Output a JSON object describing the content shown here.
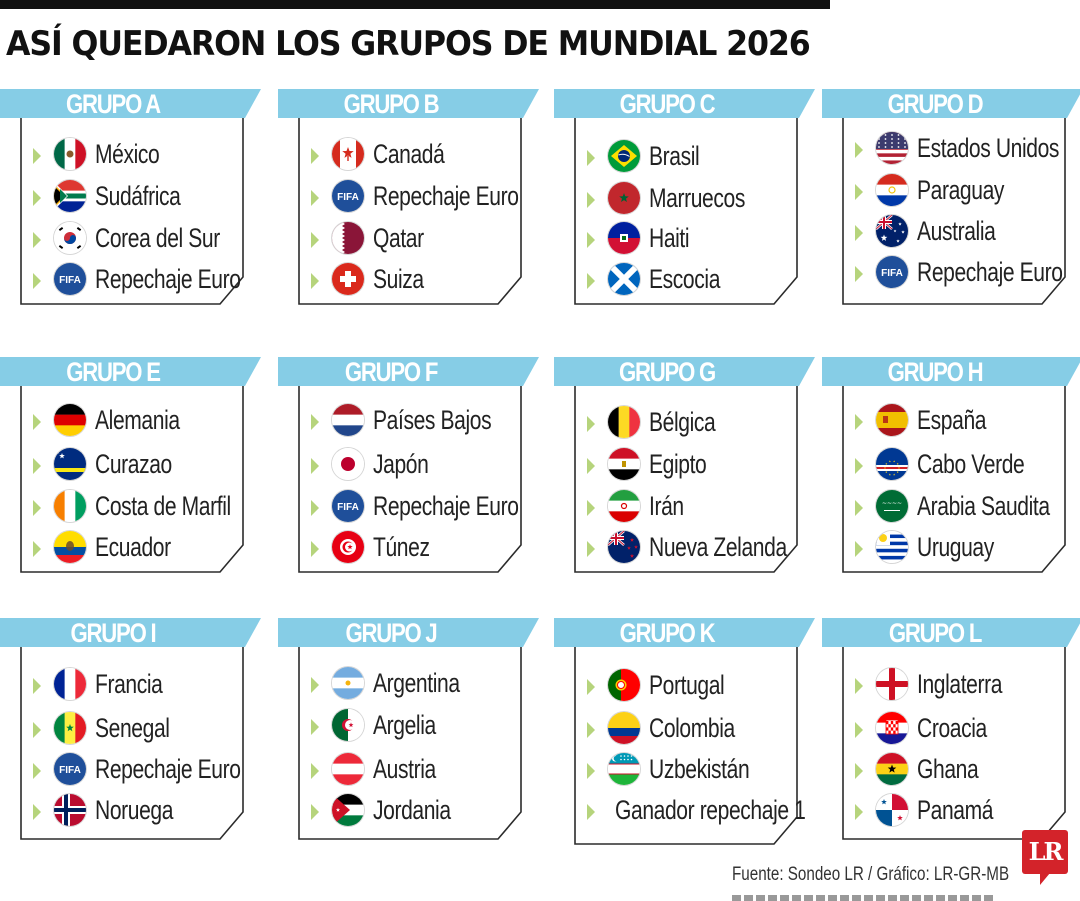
{
  "title": "ASÍ QUEDARON LOS GRUPOS DE MUNDIAL 2026",
  "colors": {
    "header_bg": "#86cde6",
    "header_text": "#ffffff",
    "bullet": "#b6d47c",
    "box_border": "#2b2b2b",
    "logo_red": "#d3232a"
  },
  "groups": [
    {
      "label": "GRUPO A",
      "teams": [
        {
          "name": "México",
          "flag": "mexico-flag"
        },
        {
          "name": "Sudáfrica",
          "flag": "south-africa-flag"
        },
        {
          "name": "Corea del Sur",
          "flag": "south-korea-flag"
        },
        {
          "name": "Repechaje Euro",
          "flag": "fifa-badge"
        }
      ]
    },
    {
      "label": "GRUPO B",
      "teams": [
        {
          "name": "Canadá",
          "flag": "canada-flag"
        },
        {
          "name": "Repechaje Euro",
          "flag": "fifa-badge"
        },
        {
          "name": "Qatar",
          "flag": "qatar-flag"
        },
        {
          "name": "Suiza",
          "flag": "switzerland-flag"
        }
      ]
    },
    {
      "label": "GRUPO C",
      "teams": [
        {
          "name": "Brasil",
          "flag": "brazil-flag"
        },
        {
          "name": "Marruecos",
          "flag": "morocco-flag"
        },
        {
          "name": "Haiti",
          "flag": "haiti-flag"
        },
        {
          "name": "Escocia",
          "flag": "scotland-flag"
        }
      ]
    },
    {
      "label": "GRUPO D",
      "teams": [
        {
          "name": "Estados Unidos",
          "flag": "usa-flag"
        },
        {
          "name": "Paraguay",
          "flag": "paraguay-flag"
        },
        {
          "name": "Australia",
          "flag": "australia-flag"
        },
        {
          "name": "Repechaje Euro",
          "flag": "fifa-badge"
        }
      ]
    },
    {
      "label": "GRUPO E",
      "teams": [
        {
          "name": "Alemania",
          "flag": "germany-flag"
        },
        {
          "name": "Curazao",
          "flag": "curacao-flag"
        },
        {
          "name": "Costa de Marfil",
          "flag": "ivory-coast-flag"
        },
        {
          "name": "Ecuador",
          "flag": "ecuador-flag"
        }
      ]
    },
    {
      "label": "GRUPO F",
      "teams": [
        {
          "name": "Países Bajos",
          "flag": "netherlands-flag"
        },
        {
          "name": "Japón",
          "flag": "japan-flag"
        },
        {
          "name": "Repechaje Euro",
          "flag": "fifa-badge"
        },
        {
          "name": "Túnez",
          "flag": "tunisia-flag"
        }
      ]
    },
    {
      "label": "GRUPO G",
      "teams": [
        {
          "name": "Bélgica",
          "flag": "belgium-flag"
        },
        {
          "name": "Egipto",
          "flag": "egypt-flag"
        },
        {
          "name": "Irán",
          "flag": "iran-flag"
        },
        {
          "name": "Nueva Zelanda",
          "flag": "new-zealand-flag"
        }
      ]
    },
    {
      "label": "GRUPO H",
      "teams": [
        {
          "name": "España",
          "flag": "spain-flag"
        },
        {
          "name": "Cabo Verde",
          "flag": "cape-verde-flag"
        },
        {
          "name": "Arabia Saudita",
          "flag": "saudi-arabia-flag"
        },
        {
          "name": "Uruguay",
          "flag": "uruguay-flag"
        }
      ]
    },
    {
      "label": "GRUPO I",
      "teams": [
        {
          "name": "Francia",
          "flag": "france-flag"
        },
        {
          "name": "Senegal",
          "flag": "senegal-flag"
        },
        {
          "name": "Repechaje Euro",
          "flag": "fifa-badge"
        },
        {
          "name": "Noruega",
          "flag": "norway-flag"
        }
      ]
    },
    {
      "label": "GRUPO J",
      "teams": [
        {
          "name": "Argentina",
          "flag": "argentina-flag"
        },
        {
          "name": "Argelia",
          "flag": "algeria-flag"
        },
        {
          "name": "Austria",
          "flag": "austria-flag"
        },
        {
          "name": "Jordania",
          "flag": "jordan-flag"
        }
      ]
    },
    {
      "label": "GRUPO K",
      "teams": [
        {
          "name": "Portugal",
          "flag": "portugal-flag"
        },
        {
          "name": "Colombia",
          "flag": "colombia-flag"
        },
        {
          "name": "Uzbekistán",
          "flag": "uzbekistan-flag"
        },
        {
          "name": "Ganador repechaje 1",
          "flag": ""
        }
      ]
    },
    {
      "label": "GRUPO L",
      "teams": [
        {
          "name": "Inglaterra",
          "flag": "england-flag"
        },
        {
          "name": "Croacia",
          "flag": "croatia-flag"
        },
        {
          "name": "Ghana",
          "flag": "ghana-flag"
        },
        {
          "name": "Panamá",
          "flag": "panama-flag"
        }
      ]
    }
  ],
  "footer": {
    "source": "Fuente: Sondeo LR / Gráfico: LR-GR-MB",
    "logo": "LR"
  }
}
